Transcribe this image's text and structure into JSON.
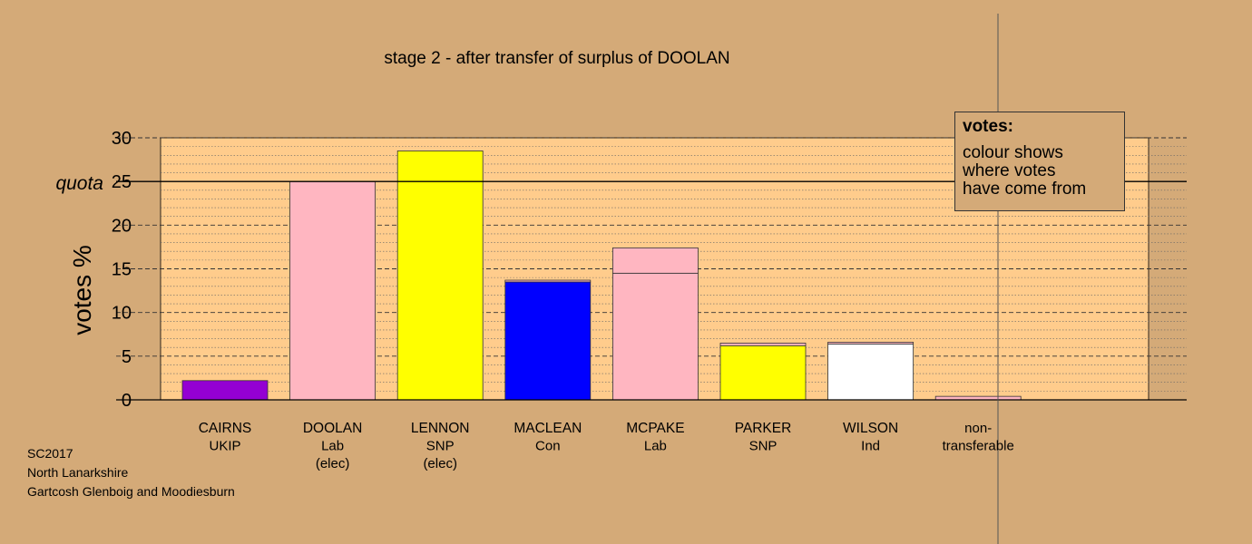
{
  "chart_data": {
    "type": "bar",
    "title": "stage 2 - after transfer of surplus of DOOLAN",
    "ylabel": "votes %",
    "ylim": [
      0,
      30
    ],
    "yticks": [
      0,
      5,
      10,
      15,
      20,
      25,
      30
    ],
    "quota": {
      "label": "quota",
      "value": 25
    },
    "categories": [
      {
        "name": "CAIRNS",
        "party": "UKIP",
        "note": ""
      },
      {
        "name": "DOOLAN",
        "party": "Lab",
        "note": "(elec)"
      },
      {
        "name": "LENNON",
        "party": "SNP",
        "note": "(elec)"
      },
      {
        "name": "MACLEAN",
        "party": "Con",
        "note": ""
      },
      {
        "name": "MCPAKE",
        "party": "Lab",
        "note": ""
      },
      {
        "name": "PARKER",
        "party": "SNP",
        "note": ""
      },
      {
        "name": "WILSON",
        "party": "Ind",
        "note": ""
      },
      {
        "name": "non-",
        "party": "transferable",
        "note": ""
      }
    ],
    "bars": [
      {
        "segments": [
          {
            "value": 2.2,
            "color": "#9400d3"
          }
        ]
      },
      {
        "segments": [
          {
            "value": 25.0,
            "color": "#ffb6c1"
          }
        ]
      },
      {
        "segments": [
          {
            "value": 28.5,
            "color": "#ffff00"
          }
        ]
      },
      {
        "segments": [
          {
            "value": 13.5,
            "color": "#0000ff"
          },
          {
            "value": 0.2,
            "color": "#ffb6c1"
          }
        ]
      },
      {
        "segments": [
          {
            "value": 14.5,
            "color": "#ffb6c1"
          },
          {
            "value": 2.9,
            "color": "#ffb6c1"
          }
        ]
      },
      {
        "segments": [
          {
            "value": 6.2,
            "color": "#ffff00"
          },
          {
            "value": 0.3,
            "color": "#ffb6c1"
          }
        ]
      },
      {
        "segments": [
          {
            "value": 6.4,
            "color": "#ffffff"
          },
          {
            "value": 0.2,
            "color": "#ffb6c1"
          }
        ]
      },
      {
        "segments": [
          {
            "value": 0.4,
            "color": "#ffb6c1"
          }
        ]
      }
    ],
    "colors": {
      "background": "#d4aa78",
      "plot_background": "#ffcc8c"
    }
  },
  "legend": {
    "title": "votes:",
    "lines": [
      "colour shows",
      "where votes",
      "have come from"
    ]
  },
  "footer": {
    "line1": "SC2017",
    "line2": "North Lanarkshire",
    "line3": "Gartcosh Glenboig and Moodiesburn"
  }
}
